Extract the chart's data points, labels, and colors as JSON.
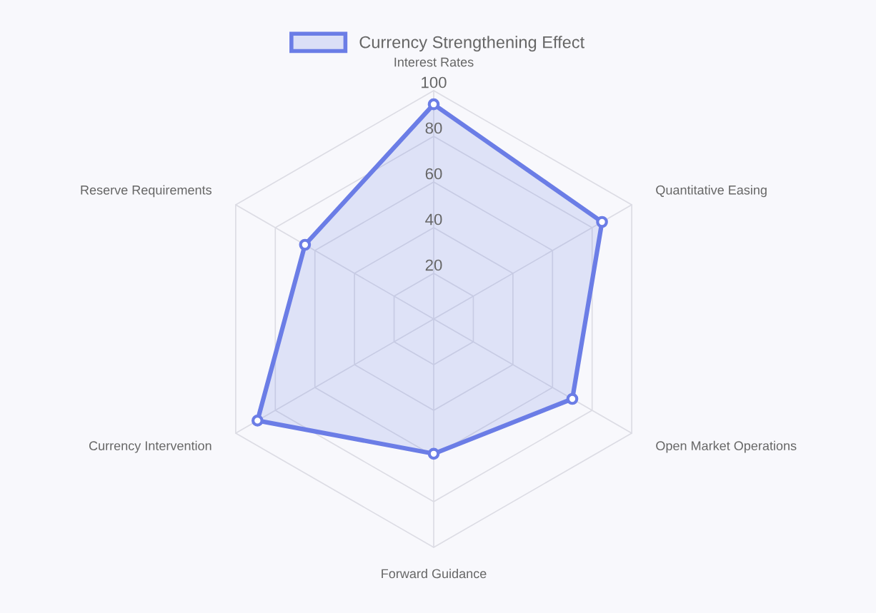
{
  "chart_data": {
    "type": "radar",
    "categories": [
      "Interest Rates",
      "Quantitative Easing",
      "Open Market Operations",
      "Forward Guidance",
      "Currency Intervention",
      "Reserve Requirements"
    ],
    "series": [
      {
        "name": "Currency Strengthening Effect",
        "color": "#6b7de6",
        "values": [
          94,
          85,
          70,
          59,
          89,
          65
        ]
      }
    ],
    "ylim": [
      0,
      100
    ],
    "yticks": [
      20,
      40,
      60,
      80,
      100
    ],
    "grid": true,
    "legend": "top",
    "marker": "circle"
  }
}
